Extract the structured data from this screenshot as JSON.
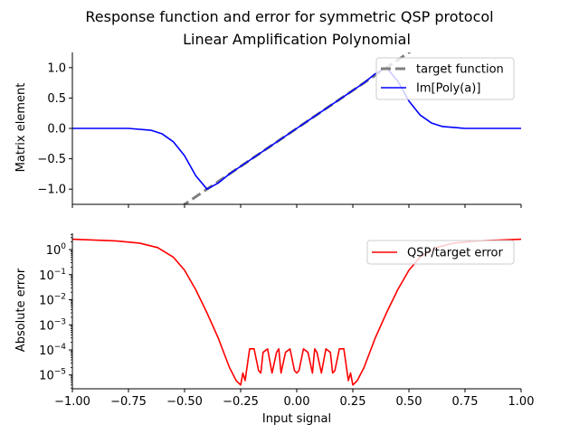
{
  "figure": {
    "suptitle": "Response function and error for symmetric QSP protocol"
  },
  "chart_data": [
    {
      "type": "line",
      "title": "Linear Amplification Polynomial",
      "xlabel": "",
      "ylabel": "Matrix element",
      "xlim": [
        -1.0,
        1.0
      ],
      "ylim": [
        -1.25,
        1.25
      ],
      "yticks": [
        "−1.0",
        "−0.5",
        "0.0",
        "0.5",
        "1.0"
      ],
      "ytick_values": [
        -1.0,
        -0.5,
        0.0,
        0.5,
        1.0
      ],
      "xticks_labels_shown": false,
      "legend_position": "top-right",
      "series": [
        {
          "name": "target function",
          "color": "#808080",
          "style": "dashed",
          "x": [
            -1.0,
            1.0
          ],
          "note_formula": "y = 2.5x"
        },
        {
          "name": "Im[Poly(a)]",
          "color": "#0000ff",
          "style": "solid",
          "x": [
            -1.0,
            -0.75,
            -0.65,
            -0.6,
            -0.55,
            -0.5,
            -0.45,
            -0.4,
            -0.35,
            -0.3,
            -0.25,
            -0.2,
            0.0,
            0.2,
            0.25,
            0.3,
            0.35,
            0.4,
            0.45,
            0.5,
            0.55,
            0.6,
            0.65,
            0.75,
            1.0
          ],
          "y": [
            0.0,
            0.0,
            -0.03,
            -0.09,
            -0.22,
            -0.45,
            -0.78,
            -1.0,
            -0.9,
            -0.75,
            -0.625,
            -0.5,
            0.0,
            0.5,
            0.625,
            0.75,
            0.9,
            1.0,
            0.78,
            0.45,
            0.22,
            0.09,
            0.03,
            0.0,
            0.0
          ]
        }
      ]
    },
    {
      "type": "line",
      "title": "",
      "xlabel": "Input signal",
      "ylabel": "Absolute error",
      "xlim": [
        -1.0,
        1.0
      ],
      "ylim_log10": [
        -5.55,
        0.65
      ],
      "yscale": "log",
      "yticks": [
        "10^-5",
        "10^-4",
        "10^-3",
        "10^-2",
        "10^-1",
        "10^0"
      ],
      "ytick_exponents": [
        -5,
        -4,
        -3,
        -2,
        -1,
        0
      ],
      "xticks": [
        "−1.00",
        "−0.75",
        "−0.50",
        "−0.25",
        "0.00",
        "0.25",
        "0.50",
        "0.75",
        "1.00"
      ],
      "xtick_values": [
        -1.0,
        -0.75,
        -0.5,
        -0.25,
        0.0,
        0.25,
        0.5,
        0.75,
        1.0
      ],
      "legend_position": "top-right",
      "series": [
        {
          "name": "QSP/target error",
          "color": "#ff0000",
          "style": "solid",
          "x": [
            -1.0,
            -0.8,
            -0.7,
            -0.62,
            -0.55,
            -0.5,
            -0.45,
            -0.4,
            -0.35,
            -0.3,
            -0.27,
            -0.25,
            -0.24,
            -0.23,
            -0.21,
            -0.19,
            -0.17,
            -0.16,
            -0.15,
            -0.13,
            -0.11,
            -0.09,
            -0.08,
            -0.07,
            -0.05,
            -0.03,
            -0.01,
            0.0,
            0.01,
            0.03,
            0.05,
            0.07,
            0.08,
            0.09,
            0.11,
            0.13,
            0.15,
            0.16,
            0.17,
            0.19,
            0.21,
            0.23,
            0.24,
            0.25,
            0.27,
            0.3,
            0.35,
            0.4,
            0.45,
            0.5,
            0.55,
            0.62,
            0.7,
            0.8,
            1.0
          ],
          "y": [
            2.6,
            2.2,
            1.8,
            1.2,
            0.5,
            0.15,
            0.025,
            0.003,
            0.0003,
            2e-05,
            6e-06,
            4e-06,
            1.2e-05,
            6e-06,
            0.00011,
            0.00011,
            1.5e-05,
            1.2e-05,
            8e-05,
            0.00011,
            1.2e-05,
            8e-05,
            0.00011,
            1.2e-05,
            8e-05,
            0.00011,
            1.5e-05,
            1.2e-05,
            1.5e-05,
            0.00011,
            8e-05,
            1.2e-05,
            0.00011,
            8e-05,
            1.2e-05,
            0.00011,
            8e-05,
            1.2e-05,
            1.5e-05,
            0.00011,
            0.00011,
            6e-06,
            1.2e-05,
            4e-06,
            6e-06,
            2e-05,
            0.0003,
            0.003,
            0.025,
            0.15,
            0.5,
            1.2,
            1.8,
            2.2,
            2.6
          ]
        }
      ]
    }
  ]
}
